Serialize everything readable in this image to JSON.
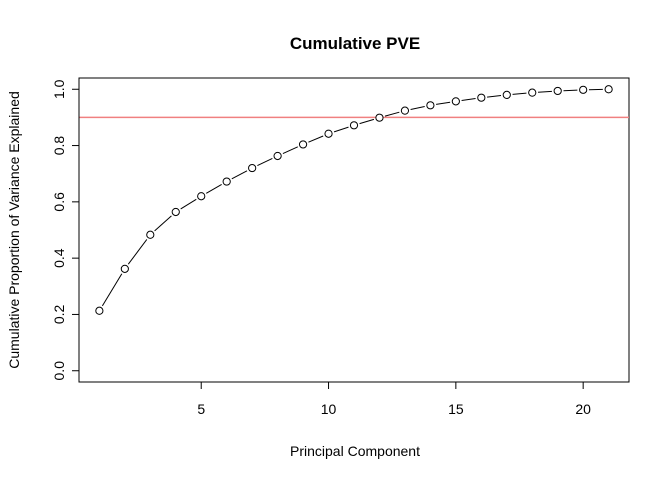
{
  "chart_data": {
    "type": "line",
    "title": "Cumulative PVE",
    "xlabel": "Principal Component",
    "ylabel": "Cumulative Proportion of Variance Explained",
    "x": [
      1,
      2,
      3,
      4,
      5,
      6,
      7,
      8,
      9,
      10,
      11,
      12,
      13,
      14,
      15,
      16,
      17,
      18,
      19,
      20,
      21
    ],
    "series": [
      {
        "values": [
          0.213,
          0.362,
          0.483,
          0.564,
          0.62,
          0.672,
          0.72,
          0.763,
          0.804,
          0.842,
          0.872,
          0.899,
          0.924,
          0.943,
          0.957,
          0.97,
          0.98,
          0.988,
          0.994,
          0.998,
          1.0
        ],
        "color": "#000000",
        "marker": "open-circle",
        "line_style": "dashed"
      }
    ],
    "reference_line": {
      "y": 0.9,
      "color": "#f08080"
    },
    "xlim": [
      0.2,
      21.8
    ],
    "ylim": [
      -0.04,
      1.04
    ],
    "x_ticks": [
      "5",
      "10",
      "15",
      "20"
    ],
    "y_ticks": [
      "0.0",
      "0.2",
      "0.4",
      "0.6",
      "0.8",
      "1.0"
    ],
    "grid": false,
    "legend": "none"
  }
}
